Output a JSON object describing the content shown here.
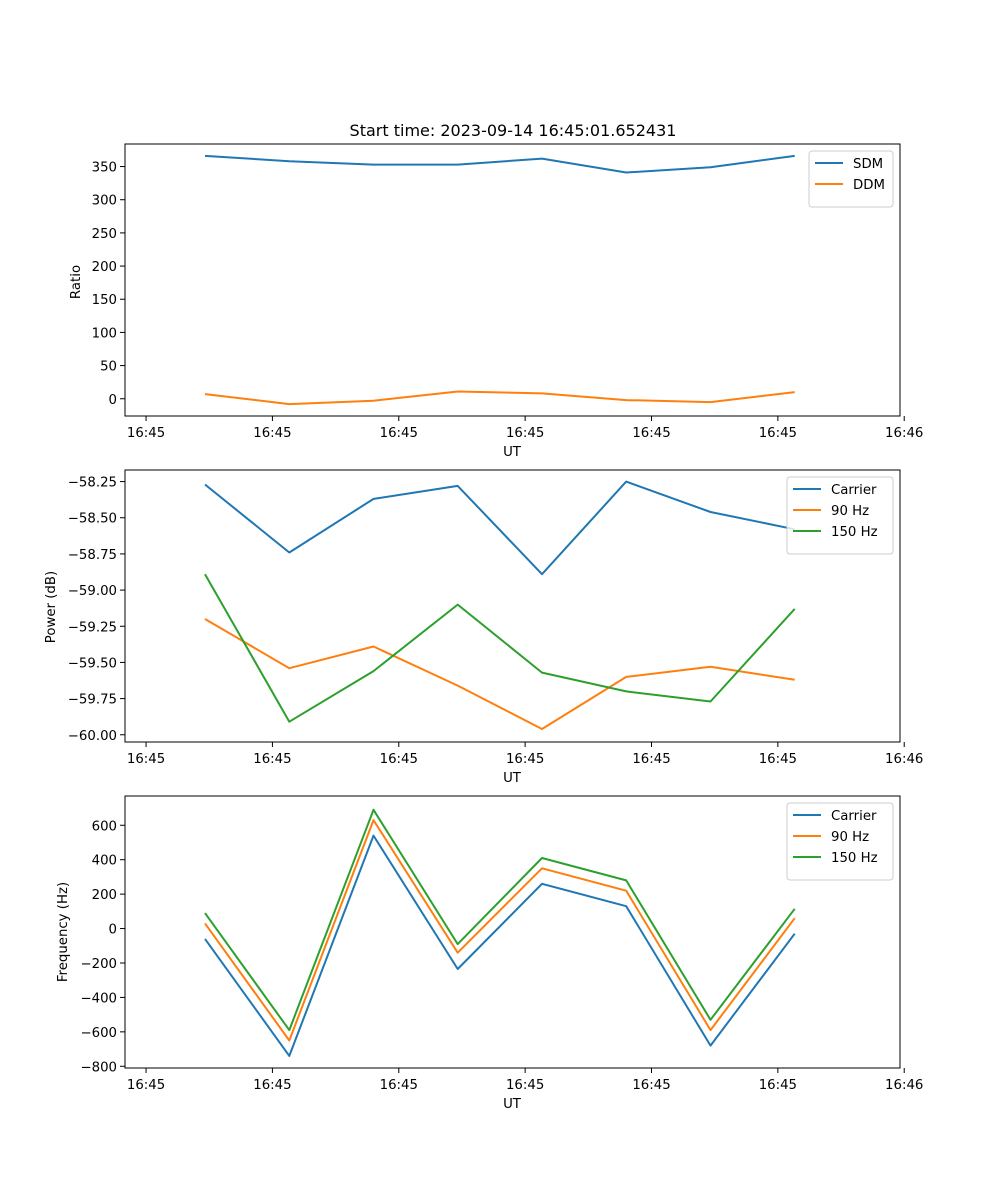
{
  "title": "Start time: 2023-09-14 16:45:01.652431",
  "colors": {
    "blue": "#1f77b4",
    "orange": "#ff7f0e",
    "green": "#2ca02c"
  },
  "chart_data": [
    {
      "type": "line",
      "title": "Start time: 2023-09-14 16:45:01.652431",
      "xlabel": "UT",
      "ylabel": "Ratio",
      "xlim": [
        -0.25,
        8.95
      ],
      "ylim": [
        -26,
        384
      ],
      "x_ticks": [
        0,
        1.5,
        3,
        4.5,
        6,
        7.5,
        9
      ],
      "x_tick_labels": [
        "16:45",
        "16:45",
        "16:45",
        "16:45",
        "16:45",
        "16:45",
        "16:46"
      ],
      "y_ticks": [
        0,
        50,
        100,
        150,
        200,
        250,
        300,
        350
      ],
      "y_tick_labels": [
        "0",
        "50",
        "100",
        "150",
        "200",
        "250",
        "300",
        "350"
      ],
      "legend_position": "top-right",
      "x": [
        0.7,
        1.7,
        2.7,
        3.7,
        4.7,
        5.7,
        6.7,
        7.7
      ],
      "series": [
        {
          "name": "SDM",
          "color": "#1f77b4",
          "values": [
            366,
            358,
            353,
            353,
            362,
            341,
            349,
            366
          ]
        },
        {
          "name": "DDM",
          "color": "#ff7f0e",
          "values": [
            7,
            -8,
            -3,
            11,
            8,
            -2,
            -5,
            10
          ]
        }
      ]
    },
    {
      "type": "line",
      "xlabel": "UT",
      "ylabel": "Power (dB)",
      "xlim": [
        -0.25,
        8.95
      ],
      "ylim": [
        -60.05,
        -58.17
      ],
      "x_ticks": [
        0,
        1.5,
        3,
        4.5,
        6,
        7.5,
        9
      ],
      "x_tick_labels": [
        "16:45",
        "16:45",
        "16:45",
        "16:45",
        "16:45",
        "16:45",
        "16:46"
      ],
      "y_ticks": [
        -60.0,
        -59.75,
        -59.5,
        -59.25,
        -59.0,
        -58.75,
        -58.5,
        -58.25
      ],
      "y_tick_labels": [
        "−60.00",
        "−59.75",
        "−59.50",
        "−59.25",
        "−59.00",
        "−58.75",
        "−58.50",
        "−58.25"
      ],
      "legend_position": "top-right",
      "x": [
        0.7,
        1.7,
        2.7,
        3.7,
        4.7,
        5.7,
        6.7,
        7.7
      ],
      "series": [
        {
          "name": "Carrier",
          "color": "#1f77b4",
          "values": [
            -58.27,
            -58.74,
            -58.37,
            -58.28,
            -58.89,
            -58.25,
            -58.46,
            -58.58
          ]
        },
        {
          "name": "90 Hz",
          "color": "#ff7f0e",
          "values": [
            -59.2,
            -59.54,
            -59.39,
            -59.66,
            -59.96,
            -59.6,
            -59.53,
            -59.62
          ]
        },
        {
          "name": "150 Hz",
          "color": "#2ca02c",
          "values": [
            -58.89,
            -59.91,
            -59.56,
            -59.1,
            -59.57,
            -59.7,
            -59.77,
            -59.13
          ]
        }
      ]
    },
    {
      "type": "line",
      "xlabel": "UT",
      "ylabel": "Frequency (Hz)",
      "xlim": [
        -0.25,
        8.95
      ],
      "ylim": [
        -810,
        770
      ],
      "x_ticks": [
        0,
        1.5,
        3,
        4.5,
        6,
        7.5,
        9
      ],
      "x_tick_labels": [
        "16:45",
        "16:45",
        "16:45",
        "16:45",
        "16:45",
        "16:45",
        "16:46"
      ],
      "y_ticks": [
        -800,
        -600,
        -400,
        -200,
        0,
        200,
        400,
        600
      ],
      "y_tick_labels": [
        "−800",
        "−600",
        "−400",
        "−200",
        "0",
        "200",
        "400",
        "600"
      ],
      "legend_position": "top-right",
      "x": [
        0.7,
        1.7,
        2.7,
        3.7,
        4.7,
        5.7,
        6.7,
        7.7
      ],
      "series": [
        {
          "name": "Carrier",
          "color": "#1f77b4",
          "values": [
            -60,
            -740,
            540,
            -235,
            260,
            130,
            -680,
            -30
          ]
        },
        {
          "name": "90 Hz",
          "color": "#ff7f0e",
          "values": [
            30,
            -650,
            630,
            -140,
            350,
            220,
            -590,
            60
          ]
        },
        {
          "name": "150 Hz",
          "color": "#2ca02c",
          "values": [
            90,
            -590,
            690,
            -90,
            410,
            280,
            -530,
            115
          ]
        }
      ]
    }
  ]
}
